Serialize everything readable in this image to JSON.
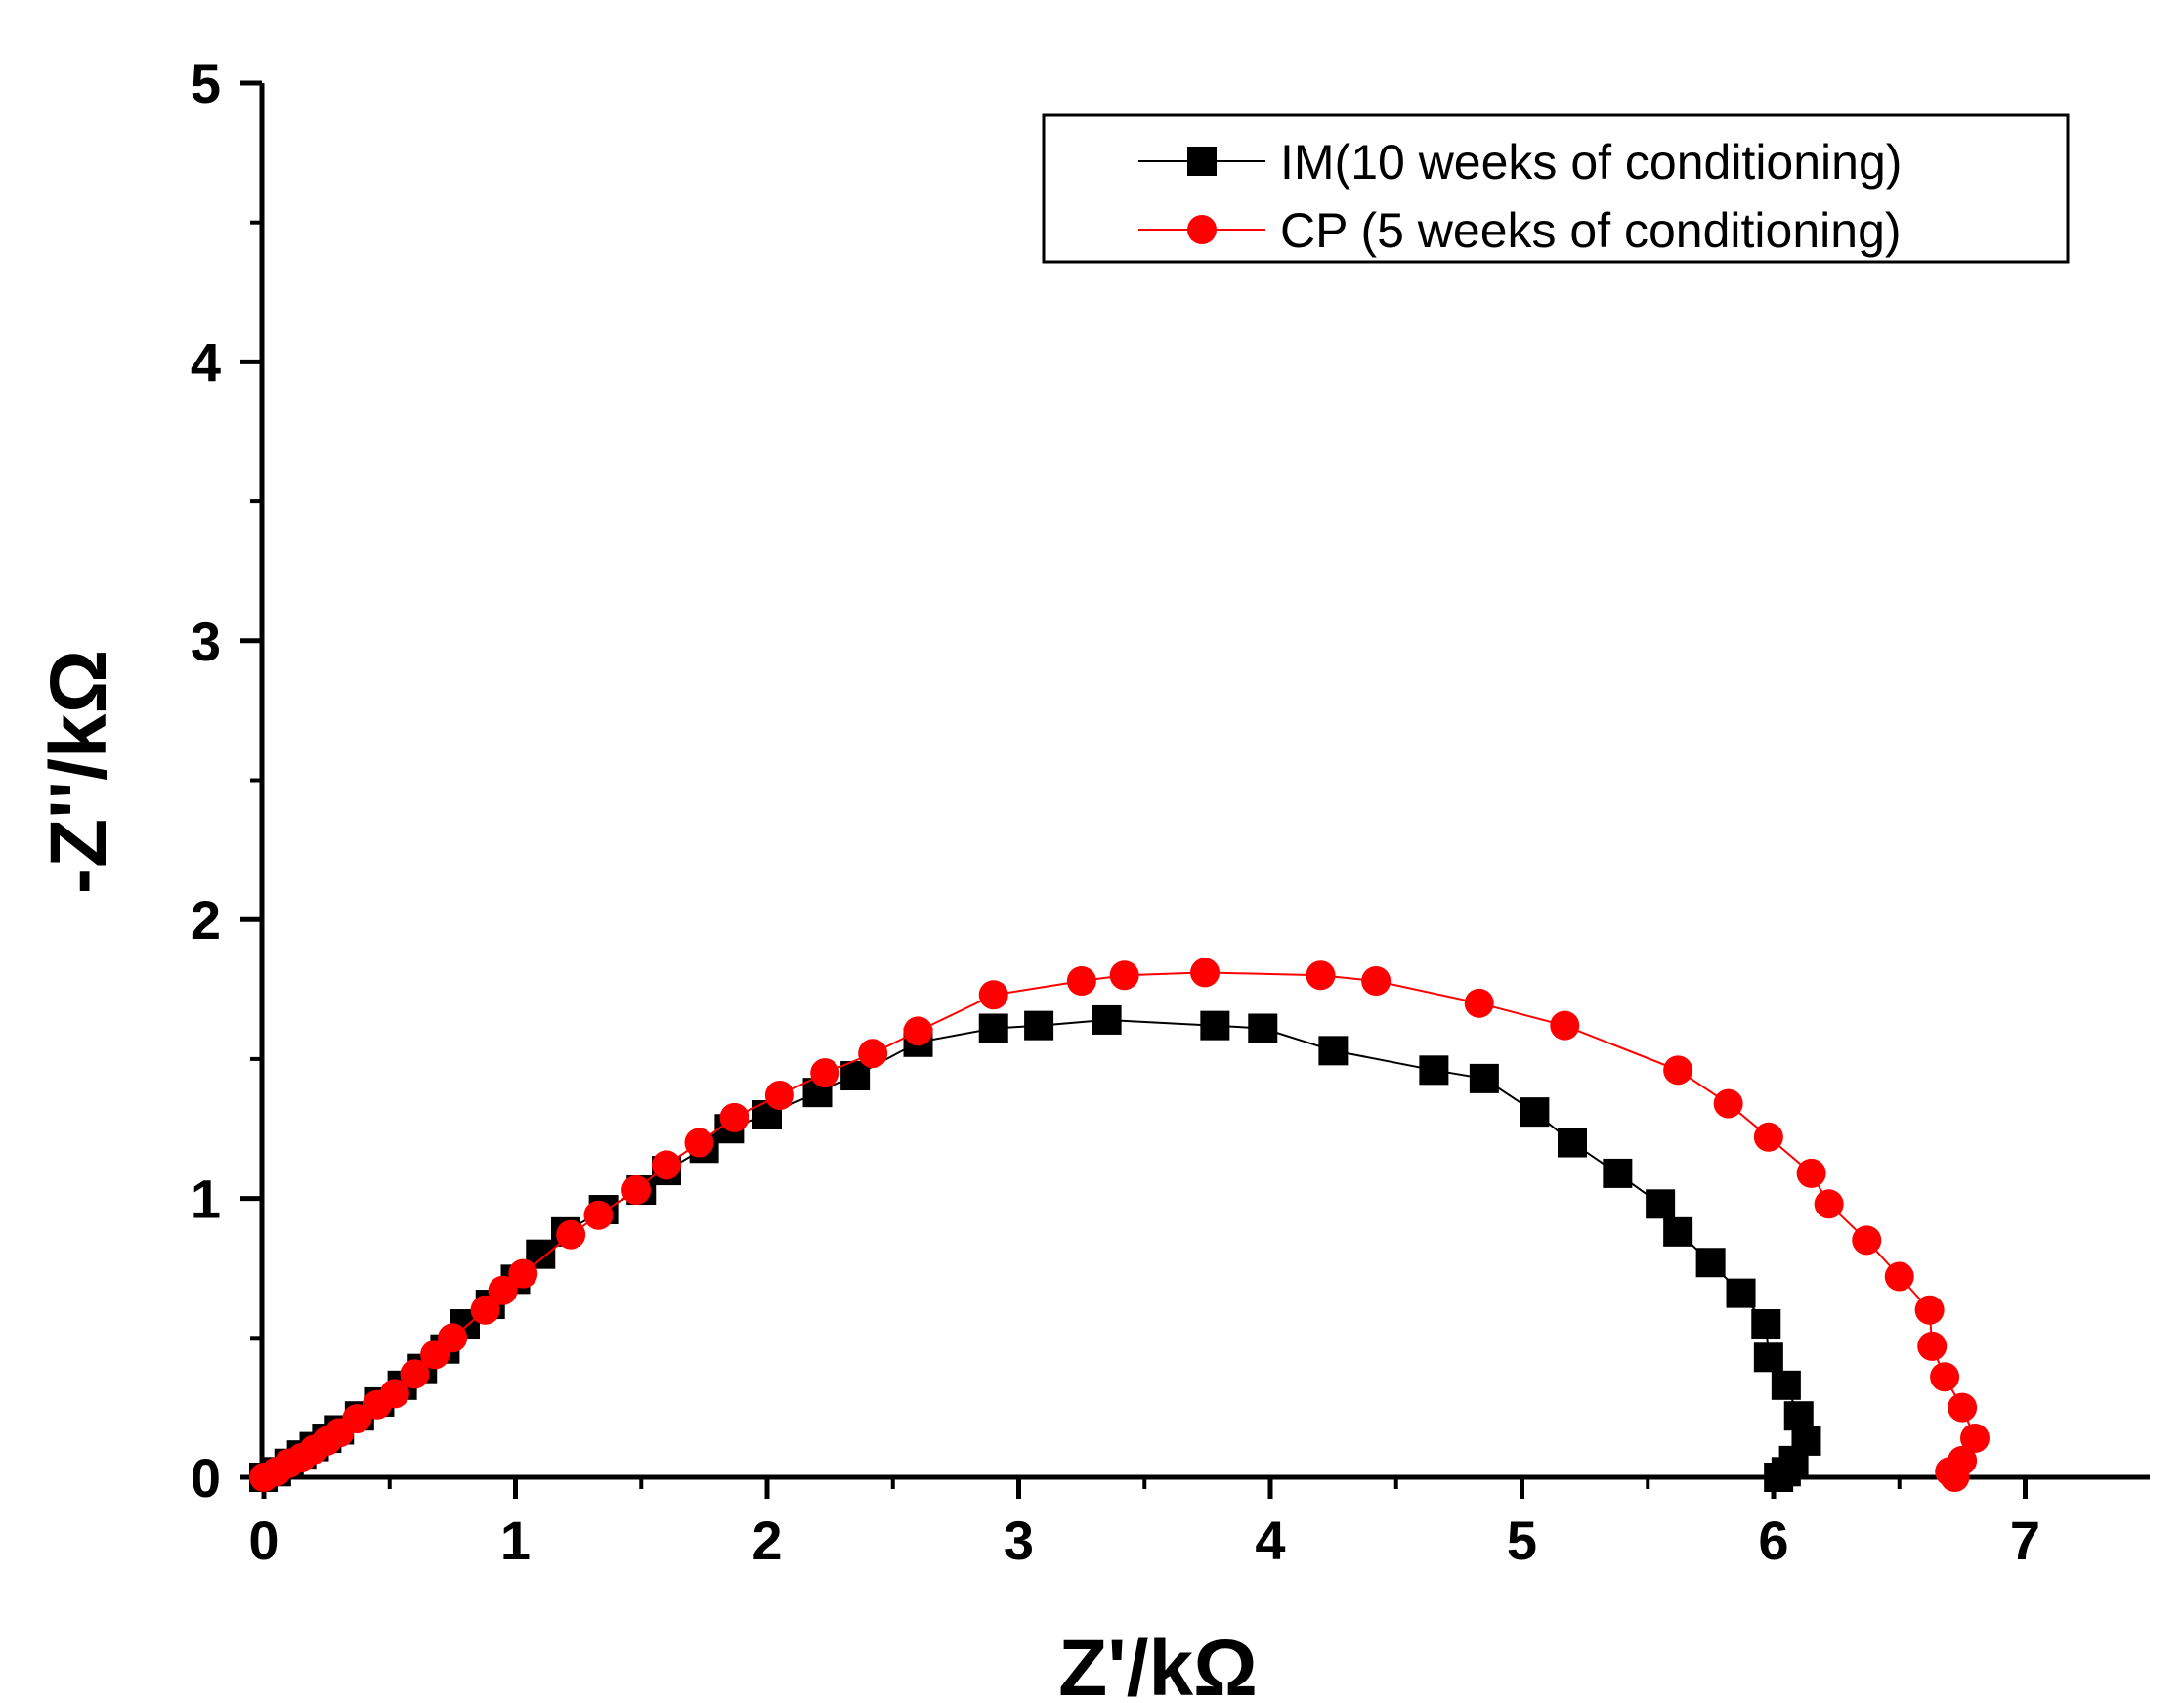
{
  "chart_data": {
    "type": "scatter",
    "xlabel": "Z'/kΩ",
    "ylabel": "-Z''/kΩ",
    "xlim": [
      0,
      7.5
    ],
    "ylim": [
      0,
      5
    ],
    "xticks": [
      0,
      1,
      2,
      3,
      4,
      5,
      6,
      7
    ],
    "yticks": [
      0,
      1,
      2,
      3,
      4,
      5
    ],
    "legend_position": "top-right",
    "series": [
      {
        "name": "IM(10 weeks of conditioning)",
        "color": "#000000",
        "marker": "square",
        "points": [
          [
            0.0,
            0.0
          ],
          [
            0.05,
            0.02
          ],
          [
            0.1,
            0.05
          ],
          [
            0.15,
            0.08
          ],
          [
            0.2,
            0.11
          ],
          [
            0.25,
            0.14
          ],
          [
            0.3,
            0.17
          ],
          [
            0.38,
            0.22
          ],
          [
            0.46,
            0.27
          ],
          [
            0.55,
            0.33
          ],
          [
            0.63,
            0.39
          ],
          [
            0.72,
            0.46
          ],
          [
            0.8,
            0.55
          ],
          [
            0.9,
            0.62
          ],
          [
            1.0,
            0.71
          ],
          [
            1.1,
            0.8
          ],
          [
            1.2,
            0.88
          ],
          [
            1.35,
            0.96
          ],
          [
            1.5,
            1.03
          ],
          [
            1.6,
            1.1
          ],
          [
            1.75,
            1.18
          ],
          [
            1.85,
            1.25
          ],
          [
            2.0,
            1.3
          ],
          [
            2.2,
            1.38
          ],
          [
            2.35,
            1.44
          ],
          [
            2.6,
            1.56
          ],
          [
            2.9,
            1.61
          ],
          [
            3.08,
            1.62
          ],
          [
            3.35,
            1.64
          ],
          [
            3.78,
            1.62
          ],
          [
            3.97,
            1.61
          ],
          [
            4.25,
            1.53
          ],
          [
            4.65,
            1.46
          ],
          [
            4.85,
            1.43
          ],
          [
            5.05,
            1.31
          ],
          [
            5.2,
            1.2
          ],
          [
            5.38,
            1.09
          ],
          [
            5.55,
            0.98
          ],
          [
            5.62,
            0.88
          ],
          [
            5.75,
            0.77
          ],
          [
            5.87,
            0.66
          ],
          [
            5.97,
            0.55
          ],
          [
            5.98,
            0.43
          ],
          [
            6.05,
            0.33
          ],
          [
            6.1,
            0.22
          ],
          [
            6.13,
            0.13
          ],
          [
            6.08,
            0.06
          ],
          [
            6.05,
            0.02
          ],
          [
            6.02,
            0.0
          ]
        ]
      },
      {
        "name": "CP (5 weeks of conditioning)",
        "color": "#ff0000",
        "marker": "circle",
        "points": [
          [
            0.0,
            0.0
          ],
          [
            0.05,
            0.02
          ],
          [
            0.1,
            0.05
          ],
          [
            0.15,
            0.07
          ],
          [
            0.2,
            0.1
          ],
          [
            0.25,
            0.13
          ],
          [
            0.3,
            0.16
          ],
          [
            0.37,
            0.21
          ],
          [
            0.45,
            0.26
          ],
          [
            0.52,
            0.3
          ],
          [
            0.6,
            0.37
          ],
          [
            0.68,
            0.44
          ],
          [
            0.75,
            0.5
          ],
          [
            0.88,
            0.6
          ],
          [
            0.95,
            0.67
          ],
          [
            1.03,
            0.73
          ],
          [
            1.22,
            0.87
          ],
          [
            1.33,
            0.94
          ],
          [
            1.48,
            1.03
          ],
          [
            1.6,
            1.12
          ],
          [
            1.73,
            1.2
          ],
          [
            1.87,
            1.29
          ],
          [
            2.05,
            1.37
          ],
          [
            2.23,
            1.45
          ],
          [
            2.42,
            1.52
          ],
          [
            2.6,
            1.6
          ],
          [
            2.9,
            1.73
          ],
          [
            3.25,
            1.78
          ],
          [
            3.42,
            1.8
          ],
          [
            3.74,
            1.81
          ],
          [
            4.2,
            1.8
          ],
          [
            4.42,
            1.78
          ],
          [
            4.83,
            1.7
          ],
          [
            5.17,
            1.62
          ],
          [
            5.62,
            1.46
          ],
          [
            5.82,
            1.34
          ],
          [
            5.98,
            1.22
          ],
          [
            6.15,
            1.09
          ],
          [
            6.22,
            0.98
          ],
          [
            6.37,
            0.85
          ],
          [
            6.5,
            0.72
          ],
          [
            6.62,
            0.6
          ],
          [
            6.63,
            0.47
          ],
          [
            6.68,
            0.36
          ],
          [
            6.75,
            0.25
          ],
          [
            6.8,
            0.14
          ],
          [
            6.75,
            0.06
          ],
          [
            6.7,
            0.02
          ],
          [
            6.72,
            0.0
          ]
        ]
      }
    ]
  }
}
